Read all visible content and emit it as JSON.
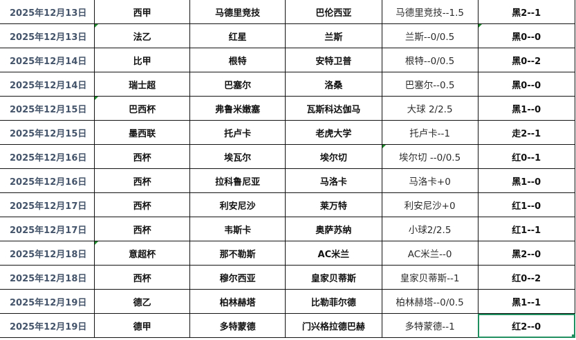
{
  "colors": {
    "date_text": "#44546a",
    "comment_marker": "#1e8c2a",
    "selection": "#1f8f5f"
  },
  "rows": [
    {
      "date": "2025年12月13日",
      "league": "西甲",
      "home": "马德里竞技",
      "away": "巴伦西亚",
      "tip": "马德里竞技--1.5",
      "result": "黑2--1"
    },
    {
      "date": "2025年12月13日",
      "league": "法乙",
      "home": "红星",
      "away": "兰斯",
      "tip": "兰斯--0/0.5",
      "result": "黑0--0"
    },
    {
      "date": "2025年12月14日",
      "league": "比甲",
      "home": "根特",
      "away": "安特卫普",
      "tip": "根特--0/0.5",
      "result": "黑0--2"
    },
    {
      "date": "2025年12月14日",
      "league": "瑞士超",
      "home": "巴塞尔",
      "away": "洛桑",
      "tip": "巴塞尔--0.5",
      "result": "黑0--0"
    },
    {
      "date": "2025年12月15日",
      "league": "巴西杯",
      "home": "弗鲁米嫩塞",
      "away": "瓦斯科达伽马",
      "tip": "大球  2/2.5",
      "result": "黑1--0"
    },
    {
      "date": "2025年12月15日",
      "league": "墨西联",
      "home": "托卢卡",
      "away": "老虎大学",
      "tip": "托卢卡--1",
      "result": "走2--1"
    },
    {
      "date": "2025年12月16日",
      "league": "西杯",
      "home": "埃瓦尔",
      "away": "埃尔切",
      "tip": "埃尔切 --0/0.5",
      "result": "红0--1"
    },
    {
      "date": "2025年12月16日",
      "league": "西杯",
      "home": "拉科鲁尼亚",
      "away": "马洛卡",
      "tip": "马洛卡+0",
      "result": "黑1--0"
    },
    {
      "date": "2025年12月17日",
      "league": "西杯",
      "home": "利安尼沙",
      "away": "莱万特",
      "tip": "利安尼沙+0",
      "result": "红1--0"
    },
    {
      "date": "2025年12月17日",
      "league": "西杯",
      "home": "韦斯卡",
      "away": "奥萨苏纳",
      "tip": "小球2/2.5",
      "result": "红1--1"
    },
    {
      "date": "2025年12月18日",
      "league": "意超杯",
      "home": "那不勒斯",
      "away": "AC米兰",
      "tip": "AC米兰--0",
      "result": "黑2--0"
    },
    {
      "date": "2025年12月18日",
      "league": "西杯",
      "home": "穆尔西亚",
      "away": "皇家贝蒂斯",
      "tip": "皇家贝蒂斯--1",
      "result": "红0--2"
    },
    {
      "date": "2025年12月19日",
      "league": "德乙",
      "home": "柏林赫塔",
      "away": "比勒菲尔德",
      "tip": "柏林赫塔--0/0.5",
      "result": "黑1--1"
    },
    {
      "date": "2025年12月19日",
      "league": "德甲",
      "home": "多特蒙德",
      "away": "门兴格拉德巴赫",
      "tip": "多特蒙德--1",
      "result": "红2--0"
    }
  ]
}
